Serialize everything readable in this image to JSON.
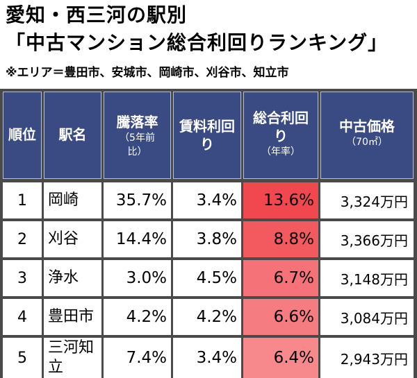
{
  "title": {
    "line1": "愛知・西三河の駅別",
    "line2": "「中古マンション総合利回りランキング」",
    "note": "※エリア＝豊田市、安城市、岡崎市、刈谷市、知立市"
  },
  "headers": {
    "rank": "順位",
    "station": "駅名",
    "drop": "騰落率",
    "drop_sub1": "（5年前",
    "drop_sub2": "比）",
    "rent": "賃料利回",
    "rent2": "り",
    "total": "総合利回",
    "total2": "り",
    "total_sub": "（年率）",
    "price": "中古価格",
    "price_sub": "（70㎡）"
  },
  "colors": {
    "header_bg": "#3a4a82",
    "total_row1": "#f0484e",
    "total_row2": "#f25a60",
    "total_row3": "#f47278",
    "total_row4": "#f57c80",
    "total_row5": "#f7898c"
  },
  "rows": [
    {
      "rank": "1",
      "station": "岡崎",
      "drop": "35.7%",
      "rent": "3.4%",
      "total": "13.6%",
      "price": "3,324万円"
    },
    {
      "rank": "2",
      "station": "刈谷",
      "drop": "14.4%",
      "rent": "3.8%",
      "total": "8.8%",
      "price": "3,366万円"
    },
    {
      "rank": "3",
      "station": "浄水",
      "drop": "3.0%",
      "rent": "4.5%",
      "total": "6.7%",
      "price": "3,148万円"
    },
    {
      "rank": "4",
      "station": "豊田市",
      "drop": "4.2%",
      "rent": "4.2%",
      "total": "6.6%",
      "price": "3,084万円"
    },
    {
      "rank": "5",
      "station": "三河知立",
      "drop": "7.4%",
      "rent": "3.4%",
      "total": "6.4%",
      "price": "2,943万円"
    }
  ]
}
